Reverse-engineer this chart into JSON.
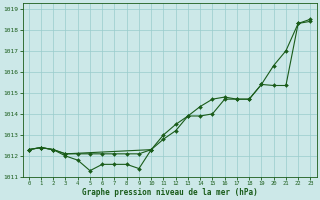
{
  "title": "Graphe pression niveau de la mer (hPa)",
  "bg_color": "#cce8e8",
  "grid_color": "#99cccc",
  "line_color": "#1a5c1a",
  "hours": [
    0,
    1,
    2,
    3,
    4,
    5,
    6,
    7,
    8,
    9,
    10,
    11,
    12,
    13,
    14,
    15,
    16,
    17,
    18,
    19,
    20,
    21,
    22,
    23
  ],
  "series_low": {
    "x": [
      0,
      1,
      2,
      3,
      4,
      5,
      6,
      7,
      8,
      9,
      10
    ],
    "y": [
      1012.3,
      1012.4,
      1012.3,
      1012.0,
      1011.8,
      1011.3,
      1011.6,
      1011.6,
      1011.6,
      1011.4,
      1012.3
    ]
  },
  "series_upper": {
    "x": [
      0,
      1,
      2,
      3,
      10,
      11,
      12,
      13,
      14,
      15,
      16,
      17,
      18,
      19,
      20,
      21,
      22,
      23
    ],
    "y": [
      1012.3,
      1012.4,
      1012.3,
      1012.1,
      1012.3,
      1013.0,
      1013.5,
      1013.9,
      1013.9,
      1014.0,
      1014.7,
      1014.7,
      1014.7,
      1015.4,
      1016.3,
      1017.0,
      1018.3,
      1018.5
    ]
  },
  "series_mid": {
    "x": [
      0,
      1,
      2,
      3,
      4,
      5,
      6,
      7,
      8,
      9,
      10,
      11,
      12,
      13,
      14,
      15,
      16,
      17,
      18,
      19,
      20,
      21,
      22,
      23
    ],
    "y": [
      1012.3,
      1012.4,
      1012.3,
      1012.1,
      1012.1,
      1012.1,
      1012.1,
      1012.1,
      1012.1,
      1012.1,
      1012.3,
      1012.8,
      1013.2,
      1013.9,
      1014.35,
      1014.7,
      1014.8,
      1014.7,
      1014.7,
      1015.4,
      1015.35,
      1015.35,
      1018.3,
      1018.4
    ]
  },
  "ylim": [
    1011.0,
    1019.25
  ],
  "yticks": [
    1011,
    1012,
    1013,
    1014,
    1015,
    1016,
    1017,
    1018,
    1019
  ],
  "xticks": [
    0,
    1,
    2,
    3,
    4,
    5,
    6,
    7,
    8,
    9,
    10,
    11,
    12,
    13,
    14,
    15,
    16,
    17,
    18,
    19,
    20,
    21,
    22,
    23
  ],
  "xlim": [
    -0.5,
    23.5
  ]
}
